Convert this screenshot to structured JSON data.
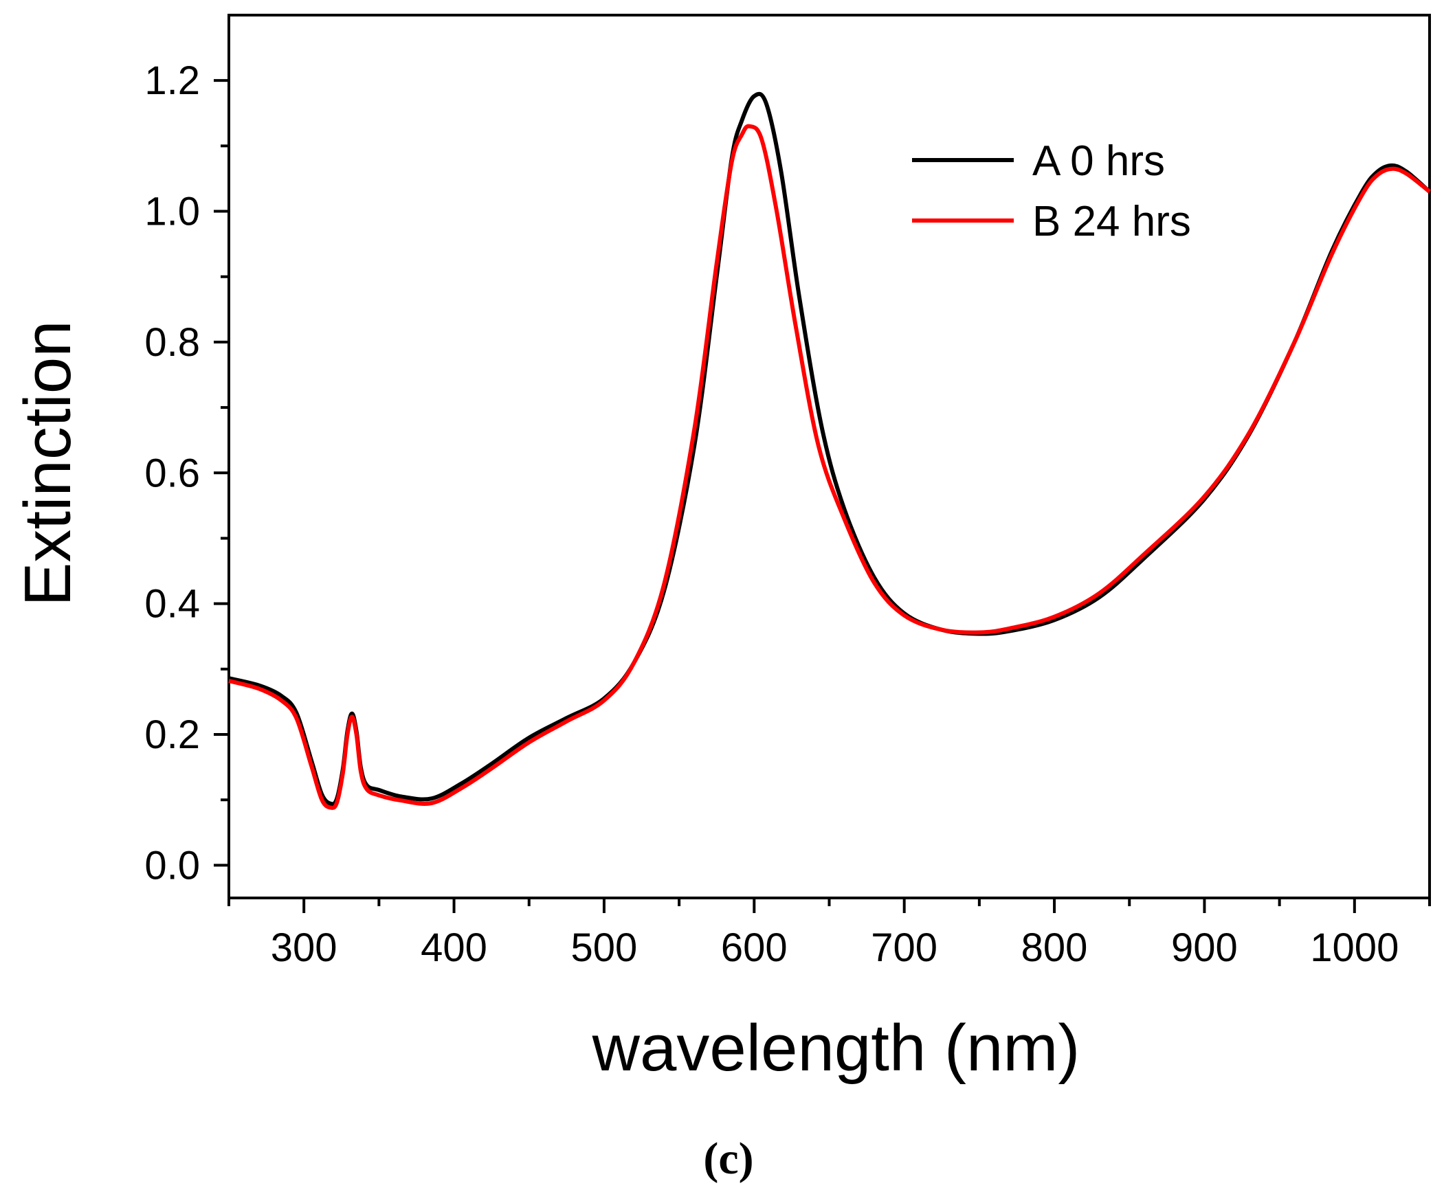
{
  "chart_data": {
    "type": "line",
    "title": "",
    "xlabel": "wavelength (nm)",
    "ylabel": "Extinction",
    "xlim": [
      250,
      1050
    ],
    "ylim": [
      -0.05,
      1.3
    ],
    "xticks": [
      300,
      400,
      500,
      600,
      700,
      800,
      900,
      1000
    ],
    "yticks": [
      0.0,
      0.2,
      0.4,
      0.6,
      0.8,
      1.0,
      1.2
    ],
    "xtick_labels": [
      "300",
      "400",
      "500",
      "600",
      "700",
      "800",
      "900",
      "1000"
    ],
    "ytick_labels": [
      "0.0",
      "0.2",
      "0.4",
      "0.6",
      "0.8",
      "1.0",
      "1.2"
    ],
    "legend_position": "top-right",
    "grid": false,
    "caption": "(c)",
    "series": [
      {
        "name": "A 0 hrs",
        "color": "#000000",
        "x": [
          250,
          270,
          285,
          295,
          305,
          312,
          318,
          322,
          326,
          329,
          332,
          335,
          338,
          342,
          350,
          365,
          385,
          405,
          425,
          450,
          475,
          500,
          520,
          540,
          560,
          575,
          585,
          592,
          600,
          608,
          618,
          630,
          645,
          660,
          680,
          700,
          725,
          750,
          770,
          800,
          830,
          860,
          900,
          930,
          960,
          985,
          1005,
          1015,
          1025,
          1035,
          1050
        ],
        "y": [
          0.286,
          0.275,
          0.259,
          0.233,
          0.16,
          0.108,
          0.094,
          0.102,
          0.148,
          0.205,
          0.232,
          0.205,
          0.148,
          0.122,
          0.115,
          0.105,
          0.102,
          0.125,
          0.155,
          0.195,
          0.225,
          0.255,
          0.31,
          0.42,
          0.64,
          0.9,
          1.08,
          1.14,
          1.176,
          1.165,
          1.06,
          0.87,
          0.67,
          0.545,
          0.44,
          0.385,
          0.36,
          0.354,
          0.358,
          0.375,
          0.41,
          0.47,
          0.56,
          0.66,
          0.8,
          0.94,
          1.03,
          1.06,
          1.07,
          1.06,
          1.03
        ]
      },
      {
        "name": "B 24 hrs",
        "color": "#ff0000",
        "x": [
          250,
          270,
          285,
          295,
          305,
          312,
          318,
          322,
          326,
          329,
          332,
          335,
          338,
          342,
          350,
          365,
          385,
          405,
          425,
          450,
          475,
          500,
          520,
          540,
          560,
          575,
          585,
          592,
          597,
          605,
          615,
          628,
          643,
          660,
          680,
          700,
          725,
          750,
          770,
          800,
          830,
          860,
          900,
          930,
          960,
          985,
          1005,
          1015,
          1025,
          1035,
          1050
        ],
        "y": [
          0.282,
          0.27,
          0.252,
          0.225,
          0.152,
          0.1,
          0.088,
          0.096,
          0.142,
          0.2,
          0.227,
          0.2,
          0.142,
          0.116,
          0.107,
          0.099,
          0.095,
          0.118,
          0.148,
          0.188,
          0.22,
          0.252,
          0.31,
          0.43,
          0.665,
          0.92,
          1.075,
          1.118,
          1.13,
          1.11,
          1.0,
          0.82,
          0.64,
          0.53,
          0.432,
          0.382,
          0.36,
          0.356,
          0.362,
          0.38,
          0.416,
          0.476,
          0.564,
          0.662,
          0.8,
          0.935,
          1.025,
          1.055,
          1.065,
          1.057,
          1.03
        ]
      }
    ]
  }
}
